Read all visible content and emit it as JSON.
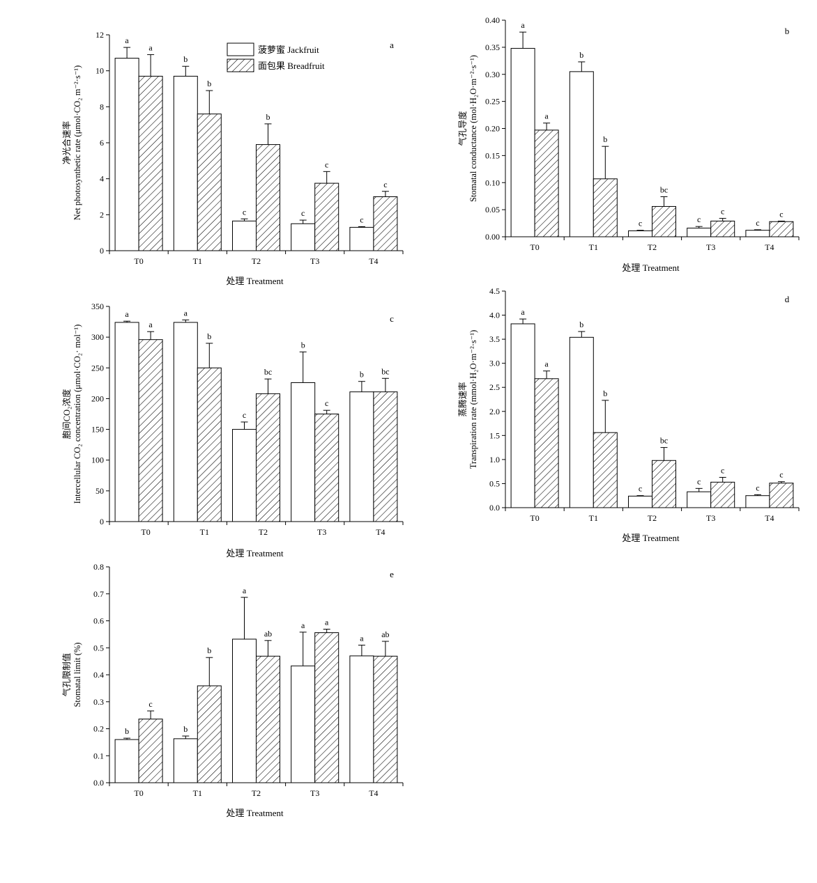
{
  "legend": {
    "jackfruit": "菠萝蜜 Jackfruit",
    "breadfruit": "面包果 Breadfruit"
  },
  "chart_data": [
    {
      "type": "bar",
      "panel": "a",
      "categories": [
        "T0",
        "T1",
        "T2",
        "T3",
        "T4"
      ],
      "ylabel_cn": "净光合速率",
      "ylabel_en": "Net photosynthetic rate (μmol·CO₂ m⁻²·s⁻¹)",
      "xlabel": "处理 Treatment",
      "ylim": [
        0,
        12
      ],
      "yticks": [
        0,
        2,
        4,
        6,
        8,
        10,
        12
      ],
      "series": [
        {
          "name": "菠萝蜜 Jackfruit",
          "values": [
            10.7,
            9.7,
            1.65,
            1.5,
            1.3
          ],
          "errors": [
            0.6,
            0.55,
            0.12,
            0.2,
            0.04
          ],
          "letters": [
            "a",
            "b",
            "c",
            "c",
            "c"
          ]
        },
        {
          "name": "面包果 Breadfruit",
          "values": [
            9.7,
            7.6,
            5.9,
            3.75,
            3.0
          ],
          "errors": [
            1.2,
            1.3,
            1.15,
            0.65,
            0.3
          ],
          "letters": [
            "a",
            "b",
            "b",
            "c",
            "c"
          ]
        }
      ]
    },
    {
      "type": "bar",
      "panel": "b",
      "categories": [
        "T0",
        "T1",
        "T2",
        "T3",
        "T4"
      ],
      "ylabel_cn": "气孔导度",
      "ylabel_en": "Stomatal conductance (mol·H₂O·m⁻²·s⁻¹)",
      "xlabel": "处理 Treatment",
      "ylim": [
        0,
        0.4
      ],
      "yticks": [
        0.0,
        0.05,
        0.1,
        0.15,
        0.2,
        0.25,
        0.3,
        0.35,
        0.4
      ],
      "tick_decimals": 2,
      "series": [
        {
          "name": "菠萝蜜 Jackfruit",
          "values": [
            0.348,
            0.305,
            0.011,
            0.016,
            0.012
          ],
          "errors": [
            0.03,
            0.018,
            0.001,
            0.003,
            0.001
          ],
          "letters": [
            "a",
            "b",
            "c",
            "c",
            "c"
          ]
        },
        {
          "name": "面包果 Breadfruit",
          "values": [
            0.197,
            0.107,
            0.056,
            0.029,
            0.028
          ],
          "errors": [
            0.013,
            0.06,
            0.018,
            0.005,
            0.001
          ],
          "letters": [
            "a",
            "b",
            "bc",
            "c",
            "c"
          ]
        }
      ]
    },
    {
      "type": "bar",
      "panel": "c",
      "categories": [
        "T0",
        "T1",
        "T2",
        "T3",
        "T4"
      ],
      "ylabel_cn": "胞间CO₂浓度",
      "ylabel_en": "Intercellular CO₂ concentration (μmol·CO₂· mol⁻¹)",
      "xlabel": "处理 Treatment",
      "ylim": [
        0,
        350
      ],
      "yticks": [
        0,
        50,
        100,
        150,
        200,
        250,
        300,
        350
      ],
      "series": [
        {
          "name": "菠萝蜜 Jackfruit",
          "values": [
            324,
            324,
            150,
            226,
            211
          ],
          "errors": [
            2,
            4,
            12,
            50,
            17
          ],
          "letters": [
            "a",
            "a",
            "c",
            "b",
            "b"
          ]
        },
        {
          "name": "面包果 Breadfruit",
          "values": [
            296,
            250,
            208,
            175,
            211
          ],
          "errors": [
            13,
            40,
            24,
            6,
            22
          ],
          "letters": [
            "a",
            "b",
            "bc",
            "c",
            "bc"
          ]
        }
      ]
    },
    {
      "type": "bar",
      "panel": "d",
      "categories": [
        "T0",
        "T1",
        "T2",
        "T3",
        "T4"
      ],
      "ylabel_cn": "蒸腾速率",
      "ylabel_en": "Transpiration rate (mmol·H₂O·m⁻²·s⁻¹)",
      "xlabel": "处理 Treatment",
      "ylim": [
        0,
        4.5
      ],
      "yticks": [
        0.0,
        0.5,
        1.0,
        1.5,
        2.0,
        2.5,
        3.0,
        3.5,
        4.0,
        4.5
      ],
      "tick_decimals": 1,
      "series": [
        {
          "name": "菠萝蜜 Jackfruit",
          "values": [
            3.82,
            3.54,
            0.24,
            0.33,
            0.25
          ],
          "errors": [
            0.1,
            0.12,
            0.01,
            0.07,
            0.02
          ],
          "letters": [
            "a",
            "b",
            "c",
            "c",
            "c"
          ]
        },
        {
          "name": "面包果 Breadfruit",
          "values": [
            2.68,
            1.56,
            0.98,
            0.53,
            0.51
          ],
          "errors": [
            0.16,
            0.67,
            0.27,
            0.1,
            0.03
          ],
          "letters": [
            "a",
            "b",
            "bc",
            "c",
            "c"
          ]
        }
      ]
    },
    {
      "type": "bar",
      "panel": "e",
      "categories": [
        "T0",
        "T1",
        "T2",
        "T3",
        "T4"
      ],
      "ylabel_cn": "气孔限制值",
      "ylabel_en": "Stomatal limit (%)",
      "xlabel": "处理 Treatment",
      "ylim": [
        0,
        0.8
      ],
      "yticks": [
        0.0,
        0.1,
        0.2,
        0.3,
        0.4,
        0.5,
        0.6,
        0.7,
        0.8
      ],
      "tick_decimals": 1,
      "series": [
        {
          "name": "菠萝蜜 Jackfruit",
          "values": [
            0.16,
            0.163,
            0.532,
            0.433,
            0.47
          ],
          "errors": [
            0.005,
            0.01,
            0.155,
            0.125,
            0.04
          ],
          "letters": [
            "b",
            "b",
            "a",
            "a",
            "a"
          ]
        },
        {
          "name": "面包果 Breadfruit",
          "values": [
            0.236,
            0.359,
            0.469,
            0.556,
            0.469
          ],
          "errors": [
            0.03,
            0.105,
            0.058,
            0.013,
            0.055
          ],
          "letters": [
            "c",
            "b",
            "ab",
            "a",
            "ab"
          ]
        }
      ]
    }
  ]
}
